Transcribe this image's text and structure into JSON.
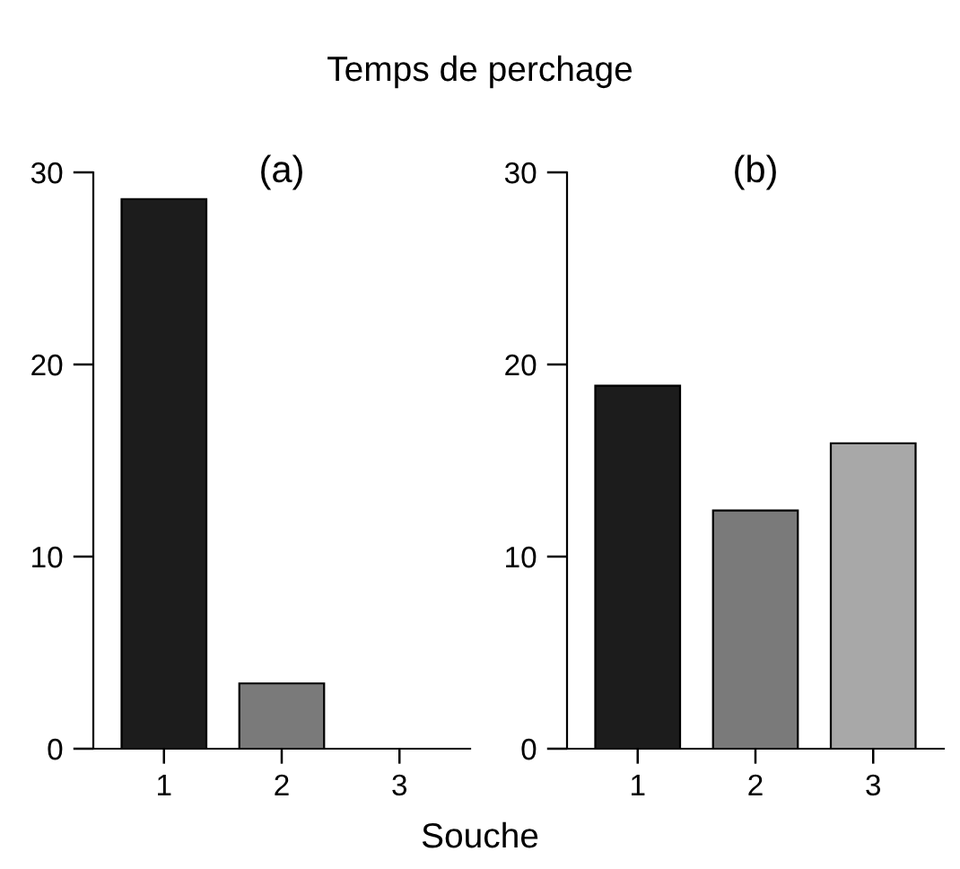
{
  "chart_data": [
    {
      "type": "bar",
      "title": "Temps de perchage",
      "subtitle": "(a)",
      "xlabel": "Souche",
      "categories": [
        "1",
        "2",
        "3"
      ],
      "values": [
        28.6,
        3.4,
        0
      ],
      "colors": [
        "#1c1c1c",
        "#7a7a7a",
        "#a8a8a8"
      ],
      "ylim": [
        0,
        30
      ],
      "yticks": [
        0,
        10,
        20,
        30
      ],
      "grid": false,
      "legend": false
    },
    {
      "type": "bar",
      "subtitle": "(b)",
      "categories": [
        "1",
        "2",
        "3"
      ],
      "values": [
        18.9,
        12.4,
        15.9
      ],
      "colors": [
        "#1c1c1c",
        "#7a7a7a",
        "#a8a8a8"
      ],
      "ylim": [
        0,
        30
      ],
      "yticks": [
        0,
        10,
        20,
        30
      ],
      "grid": false,
      "legend": false
    }
  ]
}
